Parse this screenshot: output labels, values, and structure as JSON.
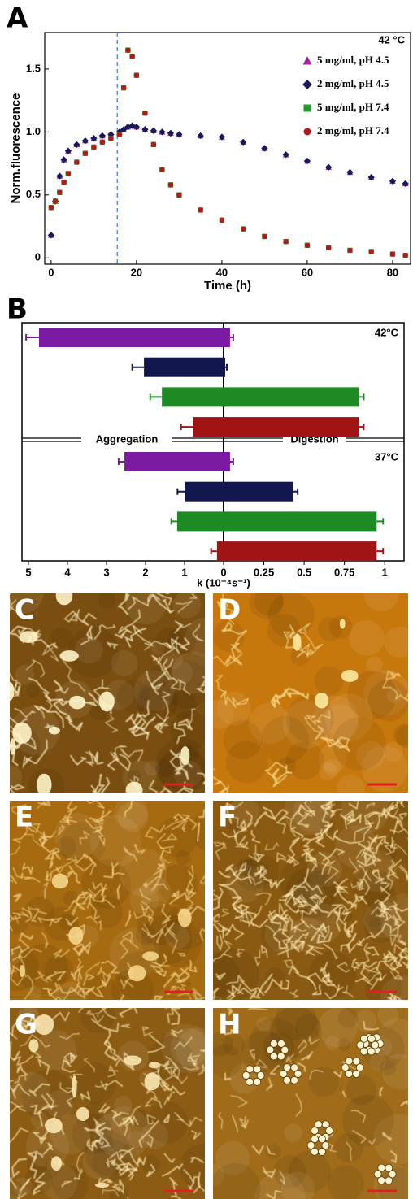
{
  "chart_data": [
    {
      "type": "scatter",
      "panel_label": "A",
      "annotation": "42 °C",
      "x_label": "Time (h)",
      "y_label": "Norm.fluorescence",
      "xlim": [
        -1.5,
        84.2
      ],
      "ylim": [
        -0.05,
        1.79
      ],
      "xticks": [
        0,
        20,
        40,
        60,
        80
      ],
      "yticks": [
        0,
        0.5,
        {
          "value": 1,
          "label": "1.0"
        },
        1.5
      ],
      "vline": 15.5,
      "x": [
        0,
        1,
        2,
        3,
        4,
        6,
        8,
        10,
        12,
        14,
        16,
        17,
        18,
        19,
        20,
        22,
        24,
        26,
        28,
        30,
        35,
        40,
        45,
        50,
        55,
        60,
        65,
        70,
        75,
        80,
        83
      ],
      "series": [
        {
          "name": "5 mg/ml, pH 4.5",
          "color": "#a0209e",
          "marker": "triangle",
          "values": [
            0.18,
            0.45,
            0.65,
            0.78,
            0.85,
            0.9,
            0.93,
            0.95,
            0.97,
            0.98,
            1.0,
            1.02,
            1.04,
            1.05,
            1.04,
            1.02,
            1.01,
            1.0,
            0.99,
            0.98,
            0.97,
            0.96,
            0.92,
            0.87,
            0.82,
            0.77,
            0.72,
            0.68,
            0.64,
            0.61,
            0.59
          ]
        },
        {
          "name": "2 mg/ml, pH 4.5",
          "color": "#16195a",
          "marker": "diamond",
          "values": [
            0.18,
            0.45,
            0.65,
            0.78,
            0.85,
            0.9,
            0.93,
            0.95,
            0.97,
            0.98,
            1.0,
            1.02,
            1.04,
            1.05,
            1.04,
            1.02,
            1.01,
            1.0,
            0.99,
            0.98,
            0.97,
            0.96,
            0.92,
            0.87,
            0.82,
            0.77,
            0.72,
            0.68,
            0.64,
            0.61,
            0.59
          ]
        },
        {
          "name": "5 mg/ml, pH 7.4",
          "color": "#1f9a2a",
          "marker": "square",
          "values": [
            0.4,
            0.45,
            0.52,
            0.6,
            0.67,
            0.76,
            0.83,
            0.88,
            0.92,
            0.95,
            0.98,
            1.35,
            1.65,
            1.6,
            1.45,
            1.15,
            0.9,
            0.7,
            0.58,
            0.5,
            0.38,
            0.3,
            0.23,
            0.17,
            0.13,
            0.1,
            0.08,
            0.06,
            0.05,
            0.03,
            0.02
          ]
        },
        {
          "name": "2 mg/ml, pH 7.4",
          "color": "#b01a1a",
          "marker": "circle",
          "values": [
            0.4,
            0.45,
            0.52,
            0.6,
            0.67,
            0.76,
            0.83,
            0.88,
            0.92,
            0.95,
            0.98,
            1.35,
            1.65,
            1.6,
            1.45,
            1.15,
            0.9,
            0.7,
            0.58,
            0.5,
            0.38,
            0.3,
            0.23,
            0.17,
            0.13,
            0.1,
            0.08,
            0.06,
            0.05,
            0.03,
            0.02
          ]
        }
      ]
    },
    {
      "type": "diverging-bar",
      "panel_label": "B",
      "x_label": "k (10⁻⁴s⁻¹)",
      "left_label": "Aggregation",
      "right_label": "Digestion",
      "left_xlim": [
        0,
        5
      ],
      "left_xticks": [
        5,
        4,
        3,
        2,
        1
      ],
      "right_xlim": [
        0,
        1.12
      ],
      "right_xticks": [
        0,
        0.25,
        0.5,
        0.75,
        1
      ],
      "groups": [
        {
          "label": "42°C",
          "series": [
            {
              "color": "#7a1aa0",
              "aggregation": 4.73,
              "aggregation_error": 0.33,
              "digestion": 0.04,
              "digestion_error": 0.02
            },
            {
              "color": "#12184e",
              "aggregation": 2.04,
              "aggregation_error": 0.3,
              "digestion": 0.01,
              "digestion_error": 0.01
            },
            {
              "color": "#1e8a24",
              "aggregation": 1.58,
              "aggregation_error": 0.3,
              "digestion": 0.84,
              "digestion_error": 0.03
            },
            {
              "color": "#a01414",
              "aggregation": 0.79,
              "aggregation_error": 0.3,
              "digestion": 0.84,
              "digestion_error": 0.03
            }
          ]
        },
        {
          "label": "37°C",
          "series": [
            {
              "color": "#7a1aa0",
              "aggregation": 2.54,
              "aggregation_error": 0.15,
              "digestion": 0.04,
              "digestion_error": 0.02
            },
            {
              "color": "#12184e",
              "aggregation": 0.98,
              "aggregation_error": 0.2,
              "digestion": 0.43,
              "digestion_error": 0.03
            },
            {
              "color": "#1e8a24",
              "aggregation": 1.19,
              "aggregation_error": 0.15,
              "digestion": 0.95,
              "digestion_error": 0.04
            },
            {
              "color": "#a01414",
              "aggregation": 0.17,
              "aggregation_error": 0.15,
              "digestion": 0.95,
              "digestion_error": 0.04
            }
          ]
        }
      ]
    }
  ],
  "images": [
    {
      "label": "C"
    },
    {
      "label": "D"
    },
    {
      "label": "E"
    },
    {
      "label": "F"
    },
    {
      "label": "G"
    },
    {
      "label": "H"
    }
  ]
}
